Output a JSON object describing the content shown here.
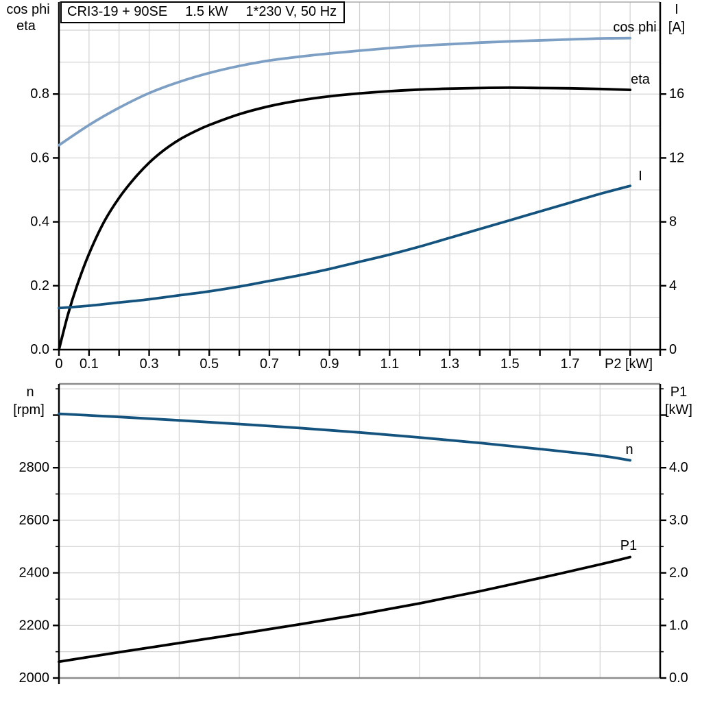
{
  "title_box": {
    "parts": [
      "CRI3-19 + 90SE",
      "1.5 kW",
      "1*230 V, 50 Hz"
    ]
  },
  "colors": {
    "cos_phi_curve": "#7d9fc4",
    "eta_curve": "#000000",
    "current_curve": "#14537e",
    "speed_curve": "#14537e",
    "p1_curve": "#000000",
    "grid": "#d2d2d2",
    "frame_gray": "#8c8c8c",
    "axis_black": "#000000"
  },
  "chart_data": [
    {
      "id": "top",
      "type": "line",
      "name": "motor cos phi, efficiency and current vs shaft power",
      "x": {
        "min": 0,
        "max": 2.0,
        "grid_step": 0.1,
        "tick_step": 0.1,
        "labels": [
          {
            "v": 0,
            "t": "0"
          },
          {
            "v": 0.1,
            "t": "0.1"
          },
          {
            "v": 0.3,
            "t": "0.3"
          },
          {
            "v": 0.5,
            "t": "0.5"
          },
          {
            "v": 0.7,
            "t": "0.7"
          },
          {
            "v": 0.9,
            "t": "0.9"
          },
          {
            "v": 1.1,
            "t": "1.1"
          },
          {
            "v": 1.3,
            "t": "1.3"
          },
          {
            "v": 1.5,
            "t": "1.5"
          },
          {
            "v": 1.7,
            "t": "1.7"
          }
        ],
        "axis_label": "P2 [kW]"
      },
      "y_left": {
        "title_lines": [
          "cos phi",
          "eta"
        ],
        "min": 0,
        "max": 1.088,
        "grid_step": 0.1,
        "ticks": [
          {
            "v": 0.0,
            "t": "0.0"
          },
          {
            "v": 0.2,
            "t": "0.2"
          },
          {
            "v": 0.4,
            "t": "0.4"
          },
          {
            "v": 0.6,
            "t": "0.6"
          },
          {
            "v": 0.8,
            "t": "0.8"
          }
        ]
      },
      "y_right": {
        "title_lines": [
          "I",
          "[A]"
        ],
        "min": 0,
        "max": 21.76,
        "ticks": [
          {
            "v": 0,
            "t": "0"
          },
          {
            "v": 4,
            "t": "4"
          },
          {
            "v": 8,
            "t": "8"
          },
          {
            "v": 12,
            "t": "12"
          },
          {
            "v": 16,
            "t": "16"
          }
        ]
      },
      "series": [
        {
          "name": "cos phi",
          "axis": "left",
          "color": "#7d9fc4",
          "points": [
            [
              0,
              0.64
            ],
            [
              0.1,
              0.703
            ],
            [
              0.2,
              0.757
            ],
            [
              0.3,
              0.803
            ],
            [
              0.4,
              0.838
            ],
            [
              0.5,
              0.866
            ],
            [
              0.6,
              0.888
            ],
            [
              0.7,
              0.905
            ],
            [
              0.8,
              0.917
            ],
            [
              0.9,
              0.927
            ],
            [
              1.0,
              0.936
            ],
            [
              1.1,
              0.944
            ],
            [
              1.2,
              0.951
            ],
            [
              1.3,
              0.956
            ],
            [
              1.4,
              0.961
            ],
            [
              1.5,
              0.965
            ],
            [
              1.6,
              0.968
            ],
            [
              1.7,
              0.971
            ],
            [
              1.8,
              0.974
            ],
            [
              1.9,
              0.975
            ]
          ]
        },
        {
          "name": "eta",
          "axis": "left",
          "color": "#000000",
          "points": [
            [
              0,
              0
            ],
            [
              0.03,
              0.11
            ],
            [
              0.06,
              0.2
            ],
            [
              0.1,
              0.3
            ],
            [
              0.15,
              0.4
            ],
            [
              0.2,
              0.475
            ],
            [
              0.25,
              0.535
            ],
            [
              0.3,
              0.585
            ],
            [
              0.35,
              0.625
            ],
            [
              0.4,
              0.657
            ],
            [
              0.45,
              0.682
            ],
            [
              0.5,
              0.703
            ],
            [
              0.6,
              0.737
            ],
            [
              0.7,
              0.762
            ],
            [
              0.8,
              0.78
            ],
            [
              0.9,
              0.793
            ],
            [
              1.0,
              0.802
            ],
            [
              1.1,
              0.809
            ],
            [
              1.2,
              0.814
            ],
            [
              1.3,
              0.817
            ],
            [
              1.4,
              0.819
            ],
            [
              1.5,
              0.82
            ],
            [
              1.6,
              0.819
            ],
            [
              1.7,
              0.818
            ],
            [
              1.8,
              0.816
            ],
            [
              1.9,
              0.813
            ]
          ]
        },
        {
          "name": "I",
          "axis": "right",
          "color": "#14537e",
          "points": [
            [
              0,
              2.6
            ],
            [
              0.1,
              2.75
            ],
            [
              0.2,
              2.95
            ],
            [
              0.3,
              3.15
            ],
            [
              0.4,
              3.4
            ],
            [
              0.5,
              3.65
            ],
            [
              0.6,
              3.95
            ],
            [
              0.7,
              4.3
            ],
            [
              0.8,
              4.65
            ],
            [
              0.9,
              5.05
            ],
            [
              1.0,
              5.5
            ],
            [
              1.1,
              5.95
            ],
            [
              1.2,
              6.45
            ],
            [
              1.3,
              7.0
            ],
            [
              1.4,
              7.55
            ],
            [
              1.5,
              8.1
            ],
            [
              1.6,
              8.65
            ],
            [
              1.7,
              9.2
            ],
            [
              1.8,
              9.75
            ],
            [
              1.9,
              10.25
            ]
          ]
        }
      ]
    },
    {
      "id": "bottom",
      "type": "line",
      "name": "motor speed and input power vs shaft power",
      "x": {
        "min": 0,
        "max": 2.0,
        "grid_step": 0.2,
        "tick_step": null,
        "labels": [],
        "axis_label": ""
      },
      "y_left": {
        "title_lines": [
          "n",
          "[rpm]"
        ],
        "min": 2000,
        "max": 3118.7,
        "grid_step": 100,
        "minor_step": 100,
        "ticks": [
          {
            "v": 2000,
            "t": "2000"
          },
          {
            "v": 2200,
            "t": "2200"
          },
          {
            "v": 2400,
            "t": "2400"
          },
          {
            "v": 2600,
            "t": "2600"
          },
          {
            "v": 2800,
            "t": "2800"
          },
          {
            "v": 3000,
            "t": ""
          }
        ]
      },
      "y_right": {
        "title_lines": [
          "P1",
          "[kW]"
        ],
        "min": 0,
        "max": 5.593,
        "minor_step": 0.5,
        "ticks": [
          {
            "v": 0.0,
            "t": "0.0"
          },
          {
            "v": 1.0,
            "t": "1.0"
          },
          {
            "v": 2.0,
            "t": "2.0"
          },
          {
            "v": 3.0,
            "t": "3.0"
          },
          {
            "v": 4.0,
            "t": "4.0"
          },
          {
            "v": 5.0,
            "t": ""
          }
        ]
      },
      "series": [
        {
          "name": "n",
          "axis": "left",
          "color": "#14537e",
          "points": [
            [
              0,
              3005
            ],
            [
              0.2,
              2993
            ],
            [
              0.4,
              2980
            ],
            [
              0.6,
              2966
            ],
            [
              0.8,
              2951
            ],
            [
              1.0,
              2934
            ],
            [
              1.2,
              2915
            ],
            [
              1.4,
              2894
            ],
            [
              1.6,
              2871
            ],
            [
              1.8,
              2846
            ],
            [
              1.9,
              2828
            ]
          ]
        },
        {
          "name": "P1",
          "axis": "right",
          "color": "#000000",
          "points": [
            [
              0,
              0.31
            ],
            [
              0.2,
              0.49
            ],
            [
              0.4,
              0.665
            ],
            [
              0.6,
              0.84
            ],
            [
              0.8,
              1.02
            ],
            [
              1.0,
              1.21
            ],
            [
              1.2,
              1.42
            ],
            [
              1.4,
              1.65
            ],
            [
              1.6,
              1.9
            ],
            [
              1.8,
              2.16
            ],
            [
              1.9,
              2.3
            ]
          ]
        }
      ]
    }
  ]
}
